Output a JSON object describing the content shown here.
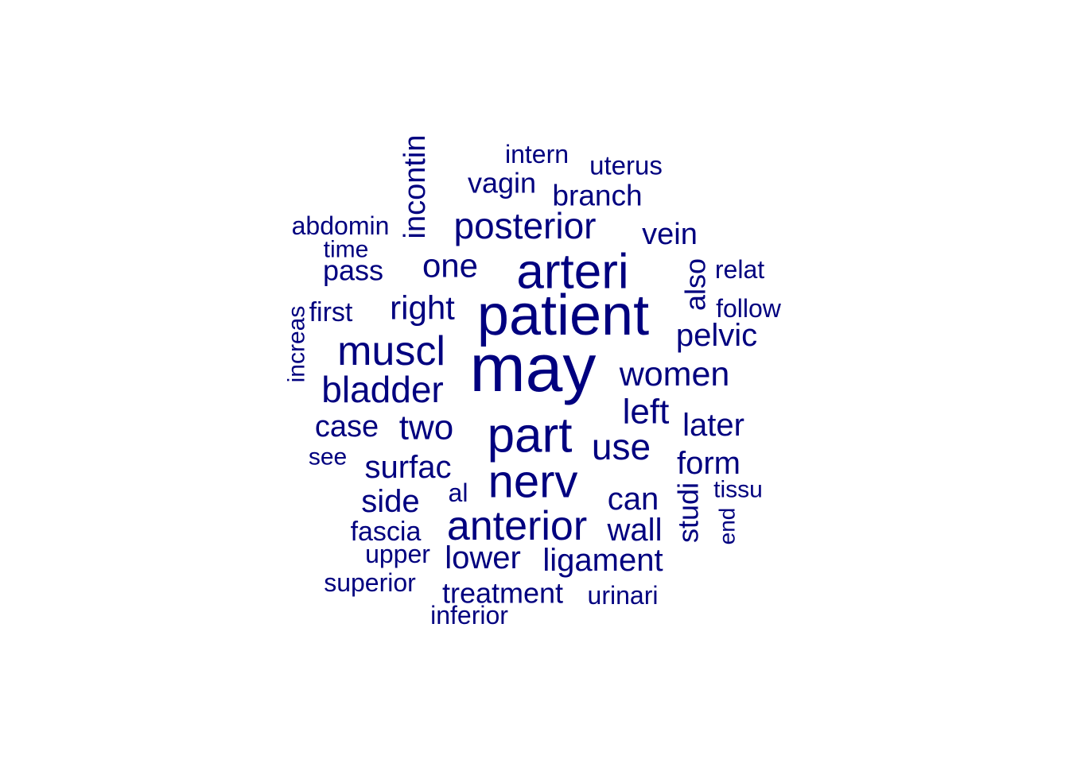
{
  "word_cloud": {
    "color": "#00007F",
    "words": [
      "may",
      "patient",
      "part",
      "arteri",
      "nerv",
      "anterior",
      "muscl",
      "posterior",
      "bladder",
      "women",
      "use",
      "two",
      "left",
      "right",
      "one",
      "surfac",
      "pelvic",
      "later",
      "form",
      "can",
      "lower",
      "ligament",
      "wall",
      "side",
      "case",
      "incontin",
      "vein",
      "branch",
      "vagin",
      "also",
      "studi",
      "al",
      "uterus",
      "intern",
      "abdomin",
      "pass",
      "fascia",
      "treatment",
      "first",
      "relat",
      "follow",
      "tissu",
      "upper",
      "superior",
      "urinari",
      "inferior",
      "time",
      "see",
      "increas",
      "end"
    ]
  }
}
